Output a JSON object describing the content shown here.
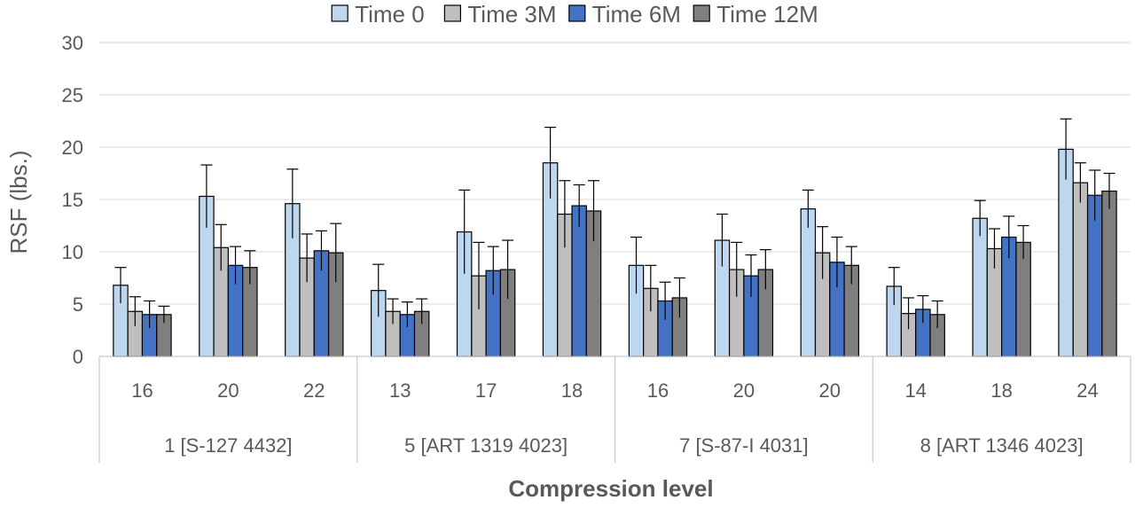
{
  "chart_data": {
    "type": "bar",
    "title": "",
    "xlabel": "Compression level",
    "ylabel": "RSF (lbs.)",
    "ylim": [
      0,
      30
    ],
    "yticks": [
      0,
      5,
      10,
      15,
      20,
      25,
      30
    ],
    "grid": true,
    "legend_position": "top",
    "groups": [
      {
        "label": "1 [S-127 4432]",
        "categories": [
          "16",
          "20",
          "22"
        ]
      },
      {
        "label": "5 [ART 1319 4023]",
        "categories": [
          "13",
          "17",
          "18"
        ]
      },
      {
        "label": "7 [S-87-I 4031]",
        "categories": [
          "16",
          "20",
          "20"
        ]
      },
      {
        "label": "8 [ART 1346 4023]",
        "categories": [
          "14",
          "18",
          "24"
        ]
      }
    ],
    "series": [
      {
        "name": "Time 0",
        "color": "#bdd7ee",
        "values": [
          6.8,
          15.3,
          14.6,
          6.3,
          11.9,
          18.5,
          8.7,
          11.1,
          14.1,
          6.7,
          13.2,
          19.8
        ],
        "errors": [
          1.7,
          3.0,
          3.3,
          2.5,
          4.0,
          3.4,
          2.7,
          2.5,
          1.8,
          1.8,
          1.7,
          2.9
        ]
      },
      {
        "name": "Time 3M",
        "color": "#bfbfbf",
        "values": [
          4.3,
          10.4,
          9.4,
          4.3,
          7.7,
          13.6,
          6.5,
          8.3,
          9.9,
          4.1,
          10.3,
          16.6
        ],
        "errors": [
          1.4,
          2.2,
          2.3,
          1.2,
          3.2,
          3.2,
          2.2,
          2.6,
          2.5,
          1.5,
          1.9,
          1.9
        ]
      },
      {
        "name": "Time 6M",
        "color": "#4472c4",
        "values": [
          4.0,
          8.7,
          10.1,
          4.0,
          8.2,
          14.4,
          5.3,
          7.7,
          9.0,
          4.5,
          11.4,
          15.4
        ],
        "errors": [
          1.3,
          1.8,
          1.9,
          1.2,
          2.3,
          2.0,
          1.8,
          2.0,
          2.4,
          1.3,
          2.0,
          2.4
        ]
      },
      {
        "name": "Time 12M",
        "color": "#7f7f7f",
        "values": [
          4.0,
          8.5,
          9.9,
          4.3,
          8.3,
          13.9,
          5.6,
          8.3,
          8.7,
          4.0,
          10.9,
          15.8
        ],
        "errors": [
          0.8,
          1.6,
          2.8,
          1.2,
          2.8,
          2.9,
          1.9,
          1.9,
          1.8,
          1.3,
          1.6,
          1.7
        ]
      }
    ]
  }
}
